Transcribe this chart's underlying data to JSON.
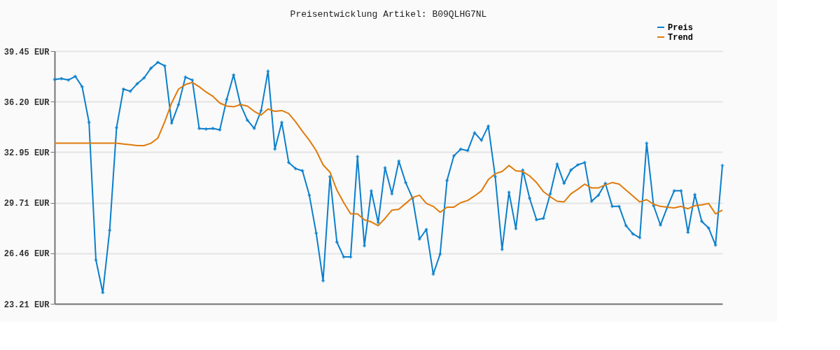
{
  "chart_data": {
    "type": "line",
    "title": "Preisentwicklung Artikel: B09QLHG7NL",
    "categories": [
      null,
      null,
      null,
      null,
      null,
      null,
      null,
      null,
      null,
      null,
      null,
      null,
      null,
      null,
      null,
      null,
      null,
      null,
      null,
      null,
      null,
      null,
      null,
      null,
      null,
      null,
      null,
      null,
      null,
      null,
      null,
      null,
      null,
      null,
      null,
      null,
      null,
      null,
      null,
      null,
      null,
      null,
      null,
      null,
      null,
      null,
      null,
      null,
      null,
      null,
      null,
      null,
      null,
      null,
      null,
      null,
      null,
      null,
      null,
      null,
      null,
      null,
      null,
      null,
      null,
      null,
      null,
      null,
      null,
      null,
      null,
      null,
      null,
      null,
      null,
      null,
      null,
      null,
      null,
      null,
      null,
      null,
      null,
      null,
      null,
      null,
      null,
      null,
      null,
      null,
      null,
      null,
      null,
      null,
      null,
      null,
      null,
      null
    ],
    "series": [
      {
        "name": "Preis",
        "color": "#0a7fcc",
        "marker": "cross",
        "values": [
          37.63,
          37.68,
          37.59,
          37.83,
          37.16,
          34.87,
          26.03,
          23.93,
          27.94,
          34.53,
          37.01,
          36.87,
          37.35,
          37.73,
          38.35,
          38.73,
          38.5,
          34.82,
          36.01,
          37.78,
          37.59,
          34.48,
          34.44,
          34.48,
          34.39,
          36.35,
          37.92,
          36.01,
          35.01,
          34.48,
          35.63,
          38.16,
          33.15,
          34.87,
          32.29,
          31.9,
          31.76,
          30.19,
          27.75,
          24.69,
          31.38,
          27.18,
          26.22,
          26.22,
          32.67,
          26.94,
          30.47,
          28.42,
          31.95,
          30.28,
          32.38,
          31.0,
          29.99,
          27.37,
          27.99,
          25.12,
          26.41,
          31.14,
          32.72,
          33.15,
          33.05,
          34.2,
          33.72,
          34.63,
          31.38,
          26.7,
          30.38,
          28.04,
          31.81,
          29.99,
          28.61,
          28.7,
          30.28,
          32.19,
          30.95,
          31.81,
          32.14,
          32.29,
          29.8,
          30.19,
          30.95,
          29.47,
          29.47,
          28.23,
          27.7,
          27.46,
          33.53,
          29.52,
          28.27,
          29.42,
          30.47,
          30.47,
          27.8,
          30.23,
          28.51,
          28.08,
          26.98,
          32.1
        ]
      },
      {
        "name": "Trend",
        "color": "#e07b0c",
        "marker": "none",
        "values": [
          33.53,
          33.53,
          33.53,
          33.53,
          33.53,
          33.53,
          33.53,
          33.53,
          33.53,
          33.53,
          33.48,
          33.43,
          33.38,
          33.38,
          33.53,
          33.86,
          34.91,
          36.11,
          37.01,
          37.3,
          37.44,
          37.16,
          36.82,
          36.54,
          36.11,
          35.92,
          35.87,
          36.01,
          35.92,
          35.58,
          35.34,
          35.73,
          35.58,
          35.63,
          35.44,
          34.91,
          34.29,
          33.72,
          33.05,
          32.14,
          31.67,
          30.52,
          29.71,
          28.99,
          28.99,
          28.61,
          28.47,
          28.23,
          28.7,
          29.23,
          29.28,
          29.66,
          30.04,
          30.19,
          29.66,
          29.47,
          29.09,
          29.42,
          29.42,
          29.71,
          29.85,
          30.14,
          30.47,
          31.19,
          31.57,
          31.71,
          32.1,
          31.76,
          31.71,
          31.43,
          31.0,
          30.42,
          30.09,
          29.8,
          29.76,
          30.28,
          30.57,
          30.9,
          30.66,
          30.66,
          30.85,
          31.0,
          30.9,
          30.52,
          30.14,
          29.76,
          29.9,
          29.61,
          29.47,
          29.42,
          29.37,
          29.47,
          29.32,
          29.52,
          29.56,
          29.66,
          28.99,
          29.23
        ]
      }
    ],
    "ylim": [
      23.21,
      39.45
    ],
    "yticks": [
      {
        "value": 23.21,
        "label": "23.21 EUR"
      },
      {
        "value": 26.46,
        "label": "26.46 EUR"
      },
      {
        "value": 29.71,
        "label": "29.71 EUR"
      },
      {
        "value": 32.95,
        "label": "32.95 EUR"
      },
      {
        "value": 36.2,
        "label": "36.20 EUR"
      },
      {
        "value": 39.45,
        "label": "39.45 EUR"
      }
    ],
    "grid": "y",
    "legend": "top right",
    "tick_labels": "y",
    "line_style": "solid"
  }
}
